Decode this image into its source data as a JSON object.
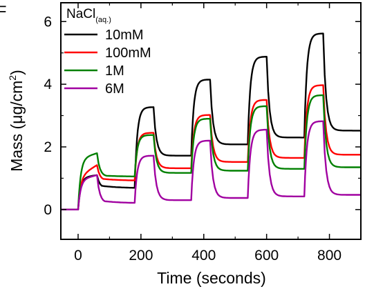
{
  "panel_label": "F",
  "chart_data": {
    "type": "line",
    "xlabel": "Time (seconds)",
    "ylabel_main": "Mass (",
    "ylabel_mu": "μ",
    "ylabel_unit": "g/cm",
    "ylabel_sup": "2",
    "ylabel_close": ")",
    "xlim": [
      -55,
      900
    ],
    "ylim": [
      -0.95,
      6.6
    ],
    "xticks": [
      0,
      200,
      400,
      600,
      800
    ],
    "yticks": [
      0,
      2,
      4,
      6
    ],
    "legend_title_main": "NaCl",
    "legend_title_sub": "(aq.)",
    "legend_position": "top-left",
    "cycles": [
      {
        "on": 0,
        "off": 60
      },
      {
        "on": 180,
        "off": 240
      },
      {
        "on": 360,
        "off": 420
      },
      {
        "on": 540,
        "off": 600
      },
      {
        "on": 720,
        "off": 780
      }
    ],
    "series": [
      {
        "name": "10mM",
        "color": "#000000",
        "baseline": 0.0,
        "start_peak": 1.02,
        "peaks": [
          1.1,
          3.27,
          4.15,
          4.88,
          5.62
        ],
        "start_trough": 0.78,
        "troughs": [
          0.68,
          1.72,
          2.08,
          2.3,
          2.52
        ]
      },
      {
        "name": "100mM",
        "color": "#ff0000",
        "baseline": 0.0,
        "start_peak": 1.05,
        "peaks": [
          1.42,
          2.45,
          3.02,
          3.5,
          3.97
        ],
        "start_trough": 1.0,
        "troughs": [
          0.92,
          1.32,
          1.52,
          1.65,
          1.75
        ]
      },
      {
        "name": "1M",
        "color": "#008000",
        "baseline": 0.0,
        "start_peak": 1.62,
        "peaks": [
          1.8,
          2.38,
          2.9,
          3.3,
          3.65
        ],
        "start_trough": 1.1,
        "troughs": [
          1.05,
          1.17,
          1.24,
          1.3,
          1.35
        ]
      },
      {
        "name": "6M",
        "color": "#a000a0",
        "baseline": 0.0,
        "start_peak": 0.95,
        "peaks": [
          1.1,
          1.72,
          2.2,
          2.55,
          2.82
        ],
        "start_trough": 0.3,
        "troughs": [
          0.2,
          0.3,
          0.37,
          0.42,
          0.47
        ]
      }
    ]
  }
}
